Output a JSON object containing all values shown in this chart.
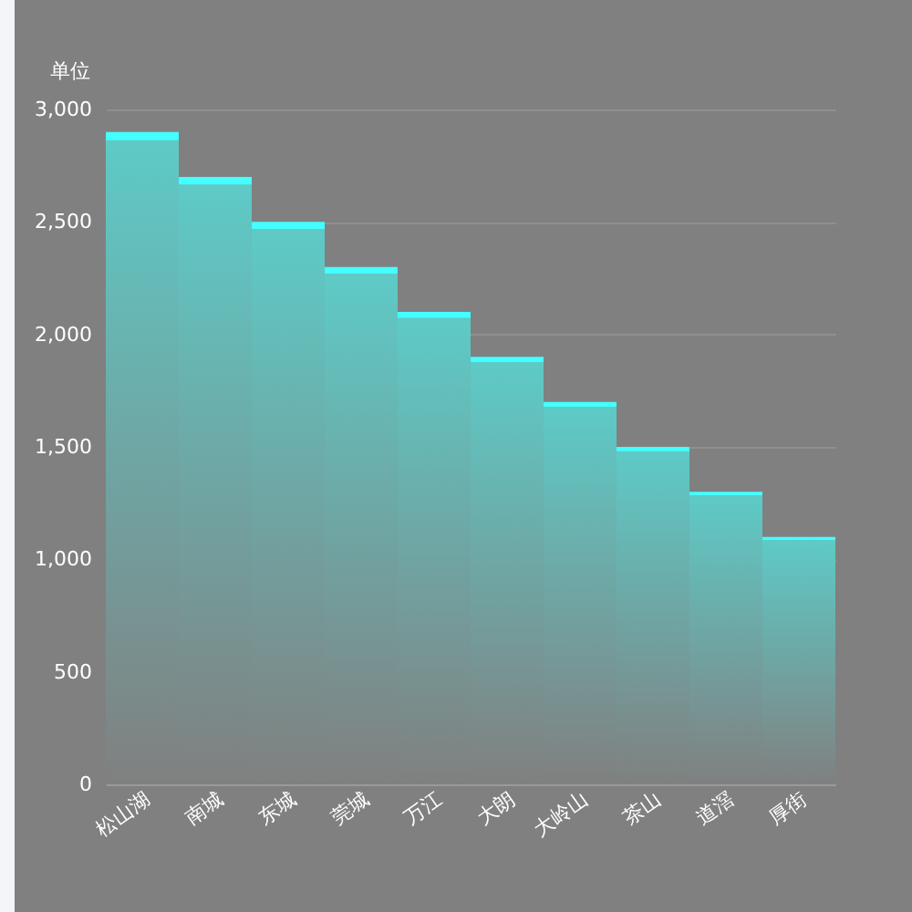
{
  "chart_data": {
    "type": "bar",
    "ylabel": "单位",
    "categories": [
      "松山湖",
      "南城",
      "东城",
      "莞城",
      "万江",
      "大朗",
      "大岭山",
      "茶山",
      "道滘",
      "厚街"
    ],
    "values": [
      2900,
      2700,
      2500,
      2300,
      2100,
      1900,
      1700,
      1500,
      1300,
      1100
    ],
    "color": "#5ecac6",
    "ylim": [
      0,
      3000
    ],
    "yticks": [
      0,
      500,
      {
        "value": 1000,
        "label": "1,000"
      },
      {
        "value": 1500,
        "label": "1,500"
      },
      {
        "value": 2000,
        "label": "2,000"
      },
      {
        "value": 2500,
        "label": "2,500"
      },
      {
        "value": 3000,
        "label": "3,000"
      }
    ],
    "grid": "y"
  }
}
